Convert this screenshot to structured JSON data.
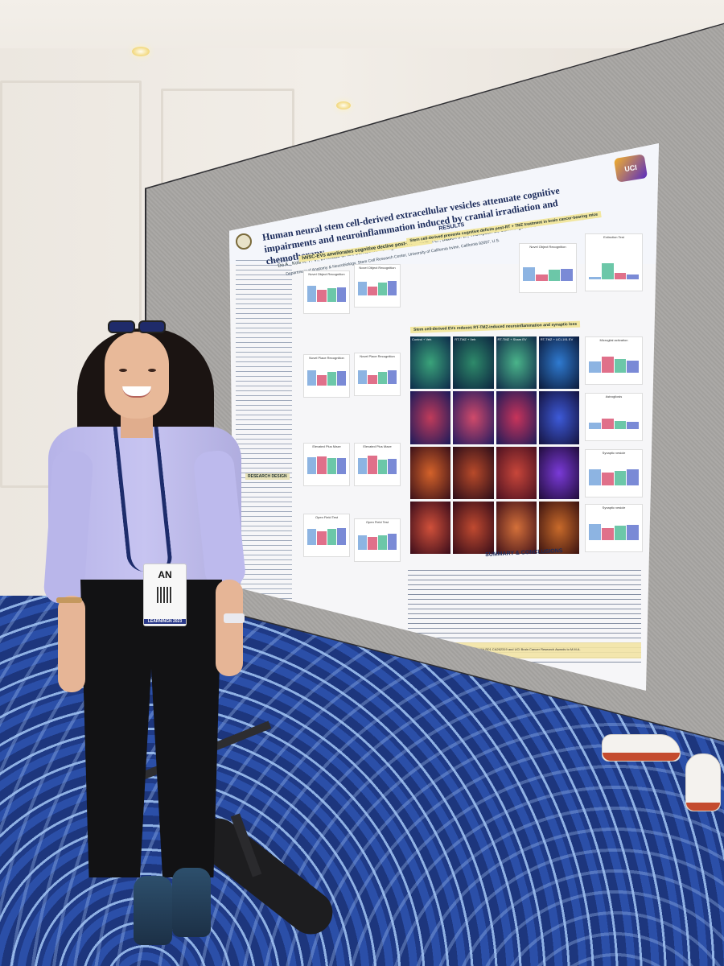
{
  "poster": {
    "title": "Human neural stem cell-derived extracellular vesicles attenuate cognitive impairments and neuroinflammation induced by cranial irradiation and chemotherapy",
    "authors": "Do A., Kolli R. P. V., El-Khatib S. M., Usmani M. T., Vagadia A. R., Hudson C., Baulch J. E., Thompson L., Cummings B. J., Anderson A. J., Acharya M.M.",
    "affiliation": "Department of Anatomy & Neurobiology, Stem Cell Research Center, University of California Irvine, California 92697, U.S.",
    "logo_text": "UCI",
    "results_heading": "RESULTS",
    "section_1": "hNSC-EVs ameliorates cognitive decline post-RT + TMZ",
    "section_2": "Stem cell-derived prevents cognitive deficits post-RT + TMZ treatment in brain cancer-bearing mice",
    "section_3": "Stem cell-derived EVs reduces RT-TMZ-induced neuroinflammation and synaptic loss",
    "research_design": "RESEARCH DESIGN",
    "summary_heading": "SUMMARY & CONCLUSIONS",
    "panels": [
      {
        "label": "Novel Object Recognition"
      },
      {
        "label": "Novel Object Recognition"
      },
      {
        "label": "Novel Place Recognition"
      },
      {
        "label": "Novel Place Recognition"
      },
      {
        "label": "Elevated Plus Maze"
      },
      {
        "label": "Elevated Plus Maze"
      },
      {
        "label": "Open Field Test"
      },
      {
        "label": "Open Field Test"
      },
      {
        "label": "Novel Object Recognition"
      },
      {
        "label": "Extinction Test"
      }
    ],
    "micro_labels": [
      "Control + Veh",
      "RT-TMZ + Veh",
      "RT-TMZ + Sham EV",
      "RT-TMZ + UCI-191 EV"
    ],
    "side_charts": [
      {
        "label": "Microglial activation"
      },
      {
        "label": "Astrogliosis"
      },
      {
        "label": "Synaptic vesicle"
      },
      {
        "label": "Synaptic vesicle"
      }
    ],
    "ack_text": "ACKNOWLEDGEMENTS: NIH R01 CA246187, NIH R01 CA262319 and UCI Brain Cancer Research Awards to M.M.A."
  },
  "badge": {
    "name": "AN",
    "event": "LEARNINGN 2023"
  },
  "colors": {
    "carpet": "#1d367d",
    "shirt": "#c7c4f1",
    "poster_title": "#1a2a5a",
    "section_highlight": "#f2e7a0"
  }
}
